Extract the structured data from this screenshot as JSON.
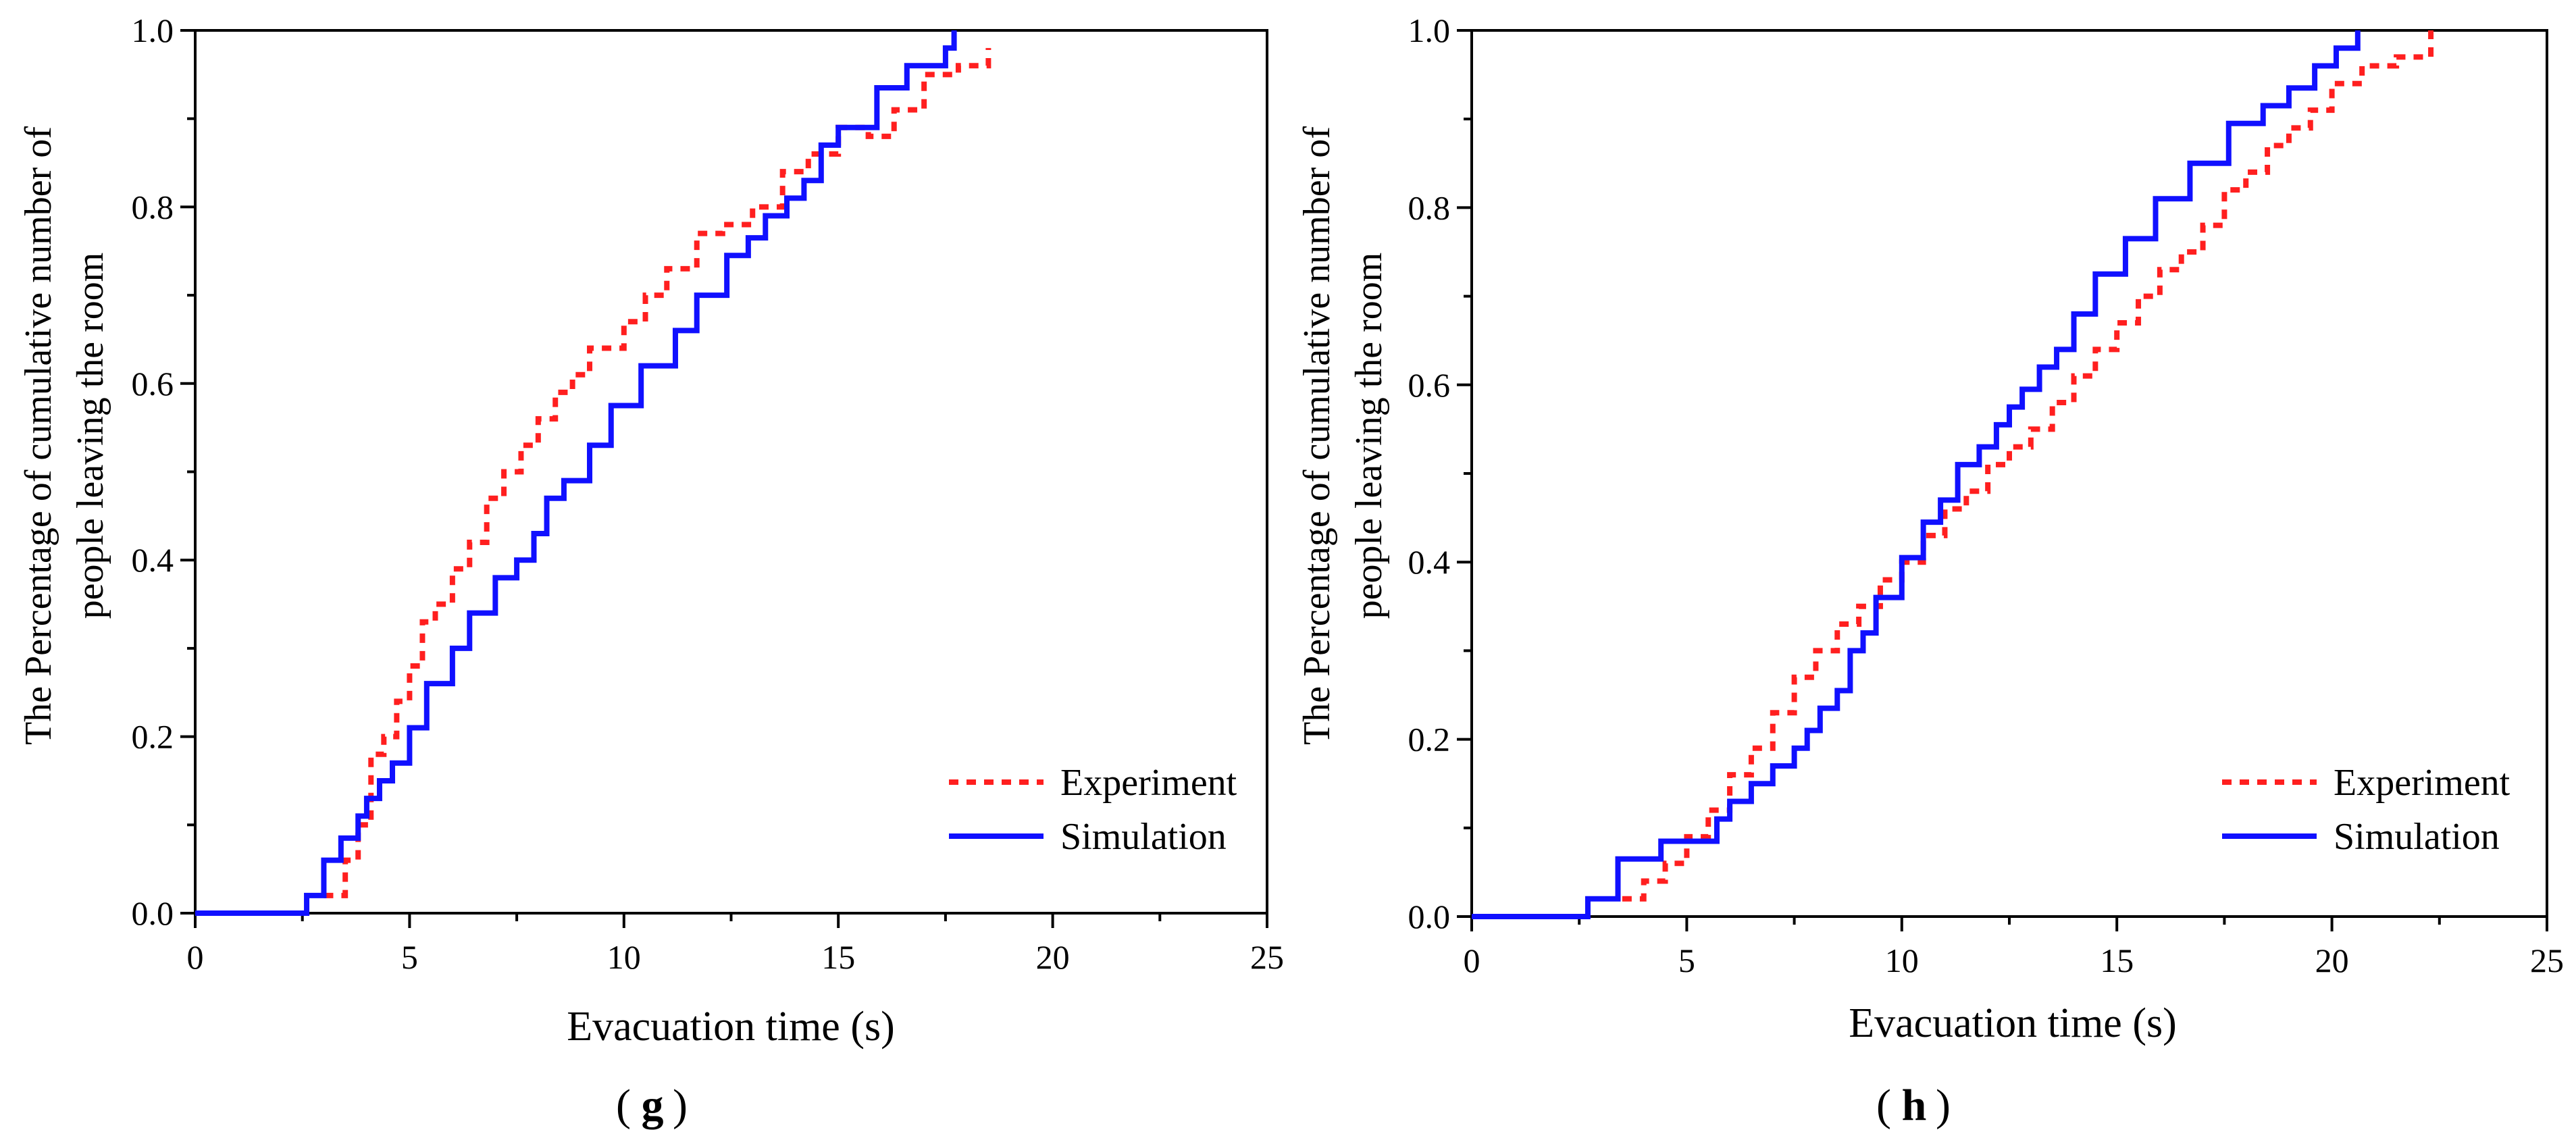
{
  "chart_data": [
    {
      "type": "line",
      "panel_label": "g",
      "xlabel": "Evacuation time (s)",
      "ylabel_lines": [
        "The Percentage of cumulative number of",
        "people leaving the room"
      ],
      "xlim": [
        0,
        25
      ],
      "ylim": [
        0,
        1.0
      ],
      "xticks": [
        "0",
        "5",
        "10",
        "15",
        "20",
        "25"
      ],
      "yticks": [
        "0.0",
        "0.2",
        "0.4",
        "0.6",
        "0.8",
        "1.0"
      ],
      "grid": false,
      "legend_position": "bottom-right",
      "series": [
        {
          "name": "Experiment",
          "color": "#ff1f1f",
          "style": "dotted",
          "step": true,
          "x": [
            3.0,
            3.5,
            3.8,
            4.1,
            4.4,
            4.7,
            5.0,
            5.3,
            5.6,
            6.0,
            6.4,
            6.8,
            7.2,
            7.6,
            8.0,
            8.4,
            8.8,
            9.2,
            10.0,
            10.5,
            11.0,
            11.7,
            12.3,
            13.0,
            13.7,
            14.3,
            15.0,
            15.7,
            16.3,
            17.0,
            17.8,
            18.5
          ],
          "y": [
            0.02,
            0.06,
            0.1,
            0.18,
            0.2,
            0.24,
            0.28,
            0.33,
            0.35,
            0.39,
            0.42,
            0.47,
            0.5,
            0.53,
            0.56,
            0.59,
            0.61,
            0.64,
            0.67,
            0.7,
            0.73,
            0.77,
            0.78,
            0.8,
            0.84,
            0.86,
            0.89,
            0.88,
            0.91,
            0.95,
            0.96,
            0.98
          ]
        },
        {
          "name": "Simulation",
          "color": "#1010ff",
          "style": "solid",
          "step": true,
          "x": [
            0,
            2.6,
            3.0,
            3.4,
            3.8,
            4.0,
            4.3,
            4.6,
            5.0,
            5.4,
            6.0,
            6.4,
            7.0,
            7.5,
            7.9,
            8.2,
            8.6,
            9.2,
            9.7,
            10.4,
            11.2,
            11.7,
            12.4,
            12.9,
            13.3,
            13.8,
            14.2,
            14.6,
            15.0,
            15.9,
            16.6,
            17.5,
            17.7
          ],
          "y": [
            0,
            0.02,
            0.06,
            0.085,
            0.11,
            0.13,
            0.15,
            0.17,
            0.21,
            0.26,
            0.3,
            0.34,
            0.38,
            0.4,
            0.43,
            0.47,
            0.49,
            0.53,
            0.575,
            0.62,
            0.66,
            0.7,
            0.745,
            0.765,
            0.79,
            0.81,
            0.83,
            0.87,
            0.89,
            0.935,
            0.96,
            0.98,
            1.0
          ]
        }
      ]
    },
    {
      "type": "line",
      "panel_label": "h",
      "xlabel": "Evacuation time (s)",
      "ylabel_lines": [
        "The Percentage of cumulative number of",
        "people leaving the room"
      ],
      "xlim": [
        0,
        25
      ],
      "ylim": [
        0,
        1.0
      ],
      "xticks": [
        "0",
        "5",
        "10",
        "15",
        "20",
        "25"
      ],
      "yticks": [
        "0.0",
        "0.2",
        "0.4",
        "0.6",
        "0.8",
        "1.0"
      ],
      "grid": false,
      "legend_position": "bottom-right",
      "series": [
        {
          "name": "Experiment",
          "color": "#ff1f1f",
          "style": "dotted",
          "step": true,
          "x": [
            3.5,
            4.0,
            4.5,
            5.0,
            5.5,
            6.0,
            6.5,
            7.0,
            7.5,
            8.0,
            8.5,
            9.0,
            9.5,
            10.0,
            10.5,
            11.0,
            11.5,
            12.0,
            12.5,
            13.0,
            13.5,
            14.0,
            14.5,
            15.0,
            15.5,
            16.0,
            16.5,
            17.0,
            17.5,
            18.0,
            18.5,
            19.0,
            19.5,
            20.0,
            20.7,
            21.5,
            22.3
          ],
          "y": [
            0.02,
            0.04,
            0.06,
            0.09,
            0.12,
            0.16,
            0.19,
            0.23,
            0.27,
            0.3,
            0.33,
            0.35,
            0.38,
            0.4,
            0.43,
            0.46,
            0.48,
            0.51,
            0.53,
            0.55,
            0.58,
            0.61,
            0.64,
            0.67,
            0.7,
            0.73,
            0.75,
            0.78,
            0.82,
            0.84,
            0.87,
            0.89,
            0.91,
            0.94,
            0.96,
            0.97,
            1.0
          ]
        },
        {
          "name": "Simulation",
          "color": "#1010ff",
          "style": "solid",
          "step": true,
          "x": [
            0,
            2.7,
            3.4,
            4.4,
            5.7,
            6.0,
            6.5,
            7.0,
            7.5,
            7.8,
            8.1,
            8.5,
            8.8,
            9.1,
            9.4,
            10.0,
            10.5,
            10.9,
            11.3,
            11.8,
            12.2,
            12.5,
            12.8,
            13.2,
            13.6,
            14.0,
            14.5,
            15.2,
            15.9,
            16.7,
            17.6,
            18.4,
            19.0,
            19.6,
            20.1,
            20.6
          ],
          "y": [
            0,
            0.02,
            0.065,
            0.085,
            0.11,
            0.13,
            0.15,
            0.17,
            0.19,
            0.21,
            0.235,
            0.255,
            0.3,
            0.32,
            0.36,
            0.405,
            0.445,
            0.47,
            0.51,
            0.53,
            0.555,
            0.575,
            0.595,
            0.62,
            0.64,
            0.68,
            0.725,
            0.765,
            0.81,
            0.85,
            0.895,
            0.915,
            0.935,
            0.96,
            0.98,
            1.0
          ]
        }
      ]
    }
  ]
}
